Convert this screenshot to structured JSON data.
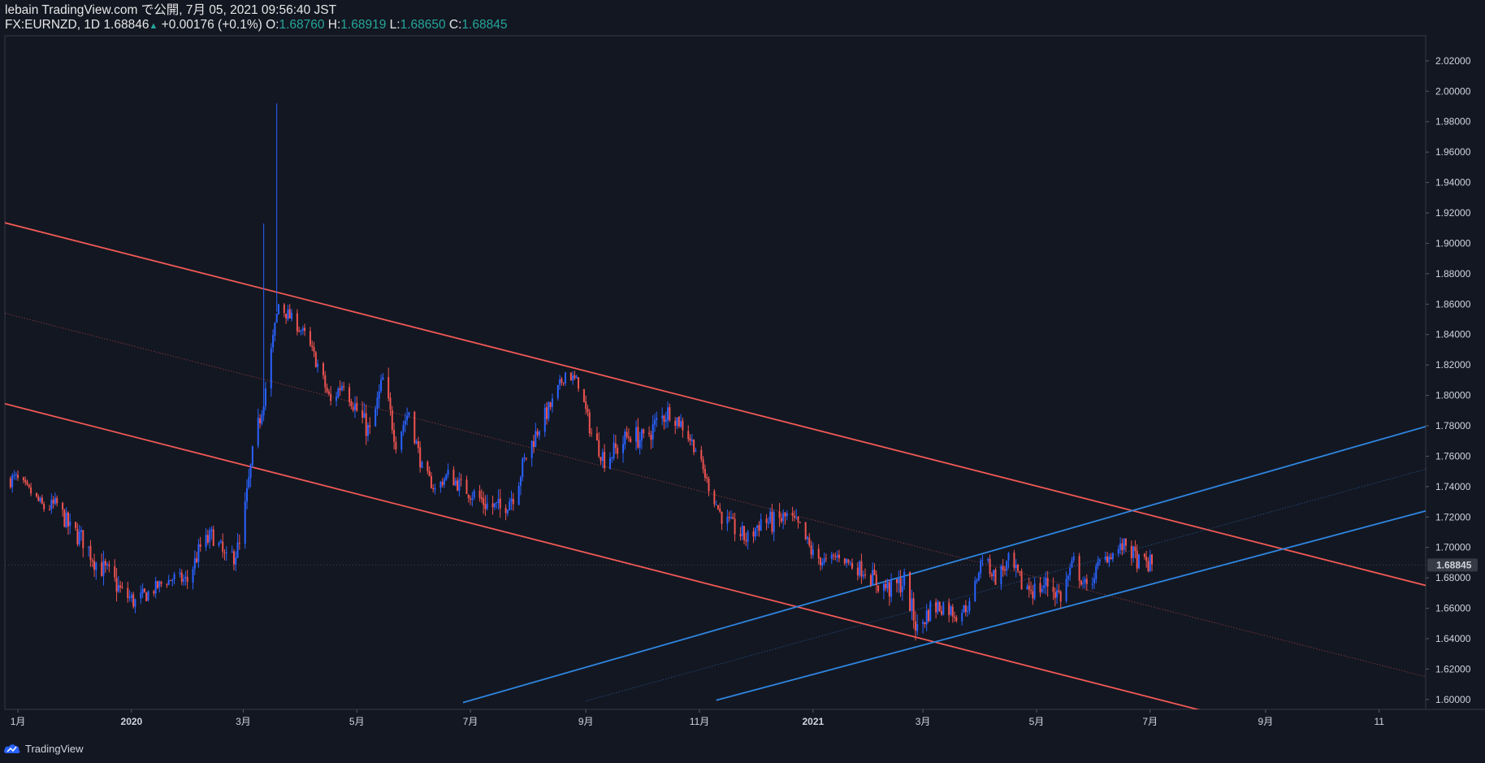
{
  "header": {
    "line1": "lebain TradingView.com で公開, 7月 05, 2021 09:56:40 JST",
    "symbol": "FX:EURNZD, 1D",
    "last": "1.68846",
    "change_arrow": "▲",
    "change": "+0.00176 (+0.1%)",
    "o_label": "O:",
    "o_val": "1.68760",
    "h_label": "H:",
    "h_val": "1.68919",
    "l_label": "L:",
    "l_val": "1.68650",
    "c_label": "C:",
    "c_val": "1.68845"
  },
  "footer": {
    "brand": "TradingView",
    "logo_icon": "tradingview-cloud-icon"
  },
  "colors": {
    "background": "#131722",
    "up": "#2962ff",
    "down": "#ef5350",
    "red_channel": "#f05a55",
    "blue_channel": "#2f86e0",
    "price_label_bg": "#363a45"
  },
  "chart_data": {
    "type": "candlestick",
    "symbol": "FX:EURNZD",
    "timeframe": "1D",
    "ylim": [
      1.5935,
      2.0365
    ],
    "y_ticks": [
      "1.60000",
      "1.62000",
      "1.64000",
      "1.66000",
      "1.68000",
      "1.70000",
      "1.72000",
      "1.74000",
      "1.76000",
      "1.78000",
      "1.80000",
      "1.82000",
      "1.84000",
      "1.86000",
      "1.88000",
      "1.90000",
      "1.92000",
      "1.94000",
      "1.96000",
      "1.98000",
      "2.00000",
      "2.02000"
    ],
    "x_labels": [
      {
        "label": "1月",
        "date": "2019-11-01"
      },
      {
        "label": "2020",
        "date": "2020-01-01"
      },
      {
        "label": "3月",
        "date": "2020-03-01"
      },
      {
        "label": "5月",
        "date": "2020-05-01"
      },
      {
        "label": "7月",
        "date": "2020-07-01"
      },
      {
        "label": "9月",
        "date": "2020-09-01"
      },
      {
        "label": "11月",
        "date": "2020-11-01"
      },
      {
        "label": "2021",
        "date": "2021-01-01"
      },
      {
        "label": "3月",
        "date": "2021-03-01"
      },
      {
        "label": "5月",
        "date": "2021-05-01"
      },
      {
        "label": "7月",
        "date": "2021-07-01"
      },
      {
        "label": "9月",
        "date": "2021-09-01"
      },
      {
        "label": "11",
        "date": "2021-11-01"
      }
    ],
    "x_domain": [
      "2019-10-25",
      "2021-11-26"
    ],
    "current_price": "1.68845",
    "closes": [
      [
        "2019-10-31",
        1.745
      ],
      [
        "2019-11-08",
        1.736
      ],
      [
        "2019-11-15",
        1.726
      ],
      [
        "2019-11-22",
        1.728
      ],
      [
        "2019-11-29",
        1.712
      ],
      [
        "2019-12-06",
        1.705
      ],
      [
        "2019-12-13",
        1.69
      ],
      [
        "2019-12-20",
        1.682
      ],
      [
        "2019-12-27",
        1.67
      ],
      [
        "2020-01-03",
        1.664
      ],
      [
        "2020-01-10",
        1.67
      ],
      [
        "2020-01-17",
        1.676
      ],
      [
        "2020-01-24",
        1.68
      ],
      [
        "2020-01-31",
        1.678
      ],
      [
        "2020-02-07",
        1.7
      ],
      [
        "2020-02-14",
        1.708
      ],
      [
        "2020-02-21",
        1.69
      ],
      [
        "2020-02-28",
        1.7
      ],
      [
        "2020-03-06",
        1.76
      ],
      [
        "2020-03-13",
        1.805
      ],
      [
        "2020-03-20",
        1.86
      ],
      [
        "2020-03-27",
        1.85
      ],
      [
        "2020-04-03",
        1.84
      ],
      [
        "2020-04-10",
        1.82
      ],
      [
        "2020-04-17",
        1.795
      ],
      [
        "2020-04-24",
        1.81
      ],
      [
        "2020-05-01",
        1.79
      ],
      [
        "2020-05-08",
        1.775
      ],
      [
        "2020-05-15",
        1.81
      ],
      [
        "2020-05-22",
        1.77
      ],
      [
        "2020-05-29",
        1.79
      ],
      [
        "2020-06-05",
        1.752
      ],
      [
        "2020-06-12",
        1.738
      ],
      [
        "2020-06-19",
        1.748
      ],
      [
        "2020-06-26",
        1.74
      ],
      [
        "2020-07-03",
        1.735
      ],
      [
        "2020-07-10",
        1.728
      ],
      [
        "2020-07-17",
        1.725
      ],
      [
        "2020-07-24",
        1.735
      ],
      [
        "2020-07-31",
        1.76
      ],
      [
        "2020-08-07",
        1.78
      ],
      [
        "2020-08-14",
        1.795
      ],
      [
        "2020-08-21",
        1.815
      ],
      [
        "2020-08-28",
        1.808
      ],
      [
        "2020-09-04",
        1.775
      ],
      [
        "2020-09-11",
        1.758
      ],
      [
        "2020-09-18",
        1.765
      ],
      [
        "2020-09-25",
        1.775
      ],
      [
        "2020-10-02",
        1.77
      ],
      [
        "2020-10-09",
        1.782
      ],
      [
        "2020-10-16",
        1.79
      ],
      [
        "2020-10-23",
        1.78
      ],
      [
        "2020-10-30",
        1.765
      ],
      [
        "2020-11-06",
        1.74
      ],
      [
        "2020-11-13",
        1.72
      ],
      [
        "2020-11-20",
        1.712
      ],
      [
        "2020-11-27",
        1.705
      ],
      [
        "2020-12-04",
        1.718
      ],
      [
        "2020-12-11",
        1.716
      ],
      [
        "2020-12-18",
        1.72
      ],
      [
        "2020-12-25",
        1.712
      ],
      [
        "2021-01-01",
        1.695
      ],
      [
        "2021-01-08",
        1.69
      ],
      [
        "2021-01-15",
        1.695
      ],
      [
        "2021-01-22",
        1.688
      ],
      [
        "2021-01-29",
        1.685
      ],
      [
        "2021-02-05",
        1.676
      ],
      [
        "2021-02-12",
        1.672
      ],
      [
        "2021-02-19",
        1.678
      ],
      [
        "2021-02-26",
        1.645
      ],
      [
        "2021-03-05",
        1.66
      ],
      [
        "2021-03-12",
        1.662
      ],
      [
        "2021-03-19",
        1.656
      ],
      [
        "2021-03-26",
        1.662
      ],
      [
        "2021-04-02",
        1.694
      ],
      [
        "2021-04-09",
        1.68
      ],
      [
        "2021-04-16",
        1.69
      ],
      [
        "2021-04-23",
        1.676
      ],
      [
        "2021-04-30",
        1.672
      ],
      [
        "2021-05-07",
        1.676
      ],
      [
        "2021-05-14",
        1.668
      ],
      [
        "2021-05-21",
        1.69
      ],
      [
        "2021-05-28",
        1.672
      ],
      [
        "2021-06-04",
        1.69
      ],
      [
        "2021-06-11",
        1.696
      ],
      [
        "2021-06-18",
        1.702
      ],
      [
        "2021-06-25",
        1.69
      ],
      [
        "2021-07-02",
        1.6885
      ]
    ],
    "trendlines": [
      {
        "color": "red",
        "style": "solid",
        "p1": [
          "2019-10-25",
          1.9135
        ],
        "p2": [
          "2021-11-26",
          1.675
        ]
      },
      {
        "color": "red",
        "style": "dotted",
        "p1": [
          "2019-10-25",
          1.854
        ],
        "p2": [
          "2021-11-26",
          1.615
        ]
      },
      {
        "color": "red",
        "style": "solid",
        "p1": [
          "2019-10-25",
          1.7945
        ],
        "p2": [
          "2021-11-26",
          1.555
        ]
      },
      {
        "color": "blue",
        "style": "solid",
        "p1": [
          "2020-06-27",
          1.598
        ],
        "p2": [
          "2021-11-26",
          1.7795
        ]
      },
      {
        "color": "blue",
        "style": "dotted",
        "p1": [
          "2020-09-01",
          1.599
        ],
        "p2": [
          "2021-11-26",
          1.7515
        ]
      },
      {
        "color": "blue",
        "style": "solid",
        "p1": [
          "2020-11-10",
          1.5995
        ],
        "p2": [
          "2021-11-26",
          1.724
        ]
      }
    ]
  }
}
